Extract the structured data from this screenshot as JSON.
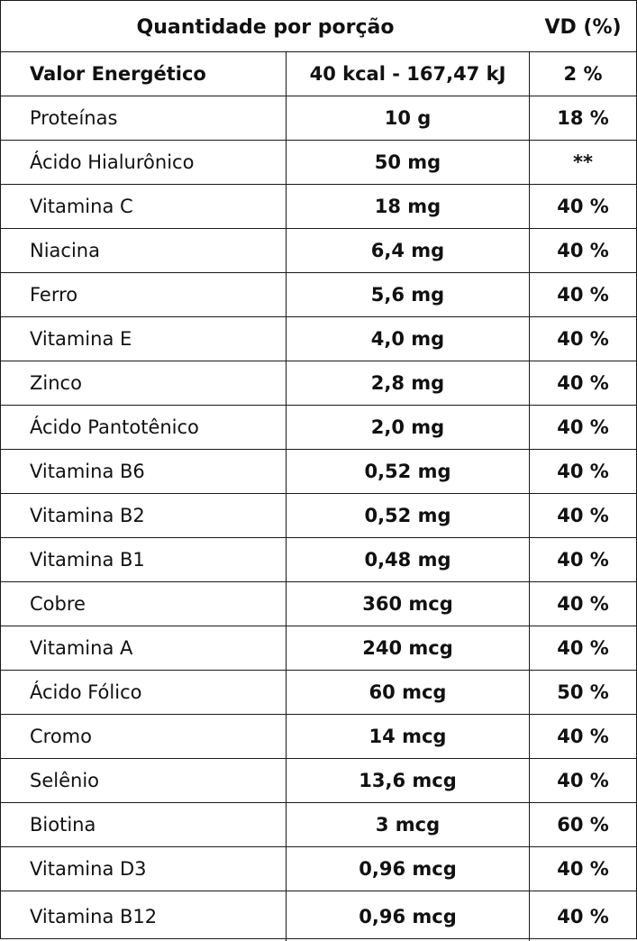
{
  "header": {
    "quantity_label": "Quantidade por porção",
    "vd_label": "VD (%)"
  },
  "rows": [
    {
      "nutrient": "Valor Energético",
      "amount": "40 kcal - 167,47 kJ",
      "vd": "2 %"
    },
    {
      "nutrient": "Proteínas",
      "amount": "10 g",
      "vd": "18 %"
    },
    {
      "nutrient": "Ácido Hialurônico",
      "amount": "50 mg",
      "vd": "**"
    },
    {
      "nutrient": "Vitamina C",
      "amount": "18 mg",
      "vd": "40 %"
    },
    {
      "nutrient": "Niacina",
      "amount": "6,4 mg",
      "vd": "40 %"
    },
    {
      "nutrient": "Ferro",
      "amount": "5,6 mg",
      "vd": "40 %"
    },
    {
      "nutrient": "Vitamina E",
      "amount": "4,0 mg",
      "vd": "40 %"
    },
    {
      "nutrient": "Zinco",
      "amount": "2,8 mg",
      "vd": "40 %"
    },
    {
      "nutrient": "Ácido Pantotênico",
      "amount": "2,0 mg",
      "vd": "40 %"
    },
    {
      "nutrient": "Vitamina B6",
      "amount": "0,52 mg",
      "vd": "40 %"
    },
    {
      "nutrient": "Vitamina B2",
      "amount": "0,52 mg",
      "vd": "40 %"
    },
    {
      "nutrient": "Vitamina B1",
      "amount": "0,48 mg",
      "vd": "40 %"
    },
    {
      "nutrient": "Cobre",
      "amount": "360 mcg",
      "vd": "40 %"
    },
    {
      "nutrient": "Vitamina A",
      "amount": "240 mcg",
      "vd": "40 %"
    },
    {
      "nutrient": "Ácido Fólico",
      "amount": "60 mcg",
      "vd": "50 %"
    },
    {
      "nutrient": "Cromo",
      "amount": "14 mcg",
      "vd": "40 %"
    },
    {
      "nutrient": "Selênio",
      "amount": "13,6 mcg",
      "vd": "40 %"
    },
    {
      "nutrient": "Biotina",
      "amount": "3 mcg",
      "vd": "60 %"
    },
    {
      "nutrient": "Vitamina D3",
      "amount": "0,96 mcg",
      "vd": "40 %"
    },
    {
      "nutrient": "Vitamina B12",
      "amount": "0,96 mcg",
      "vd": "40 %"
    }
  ]
}
